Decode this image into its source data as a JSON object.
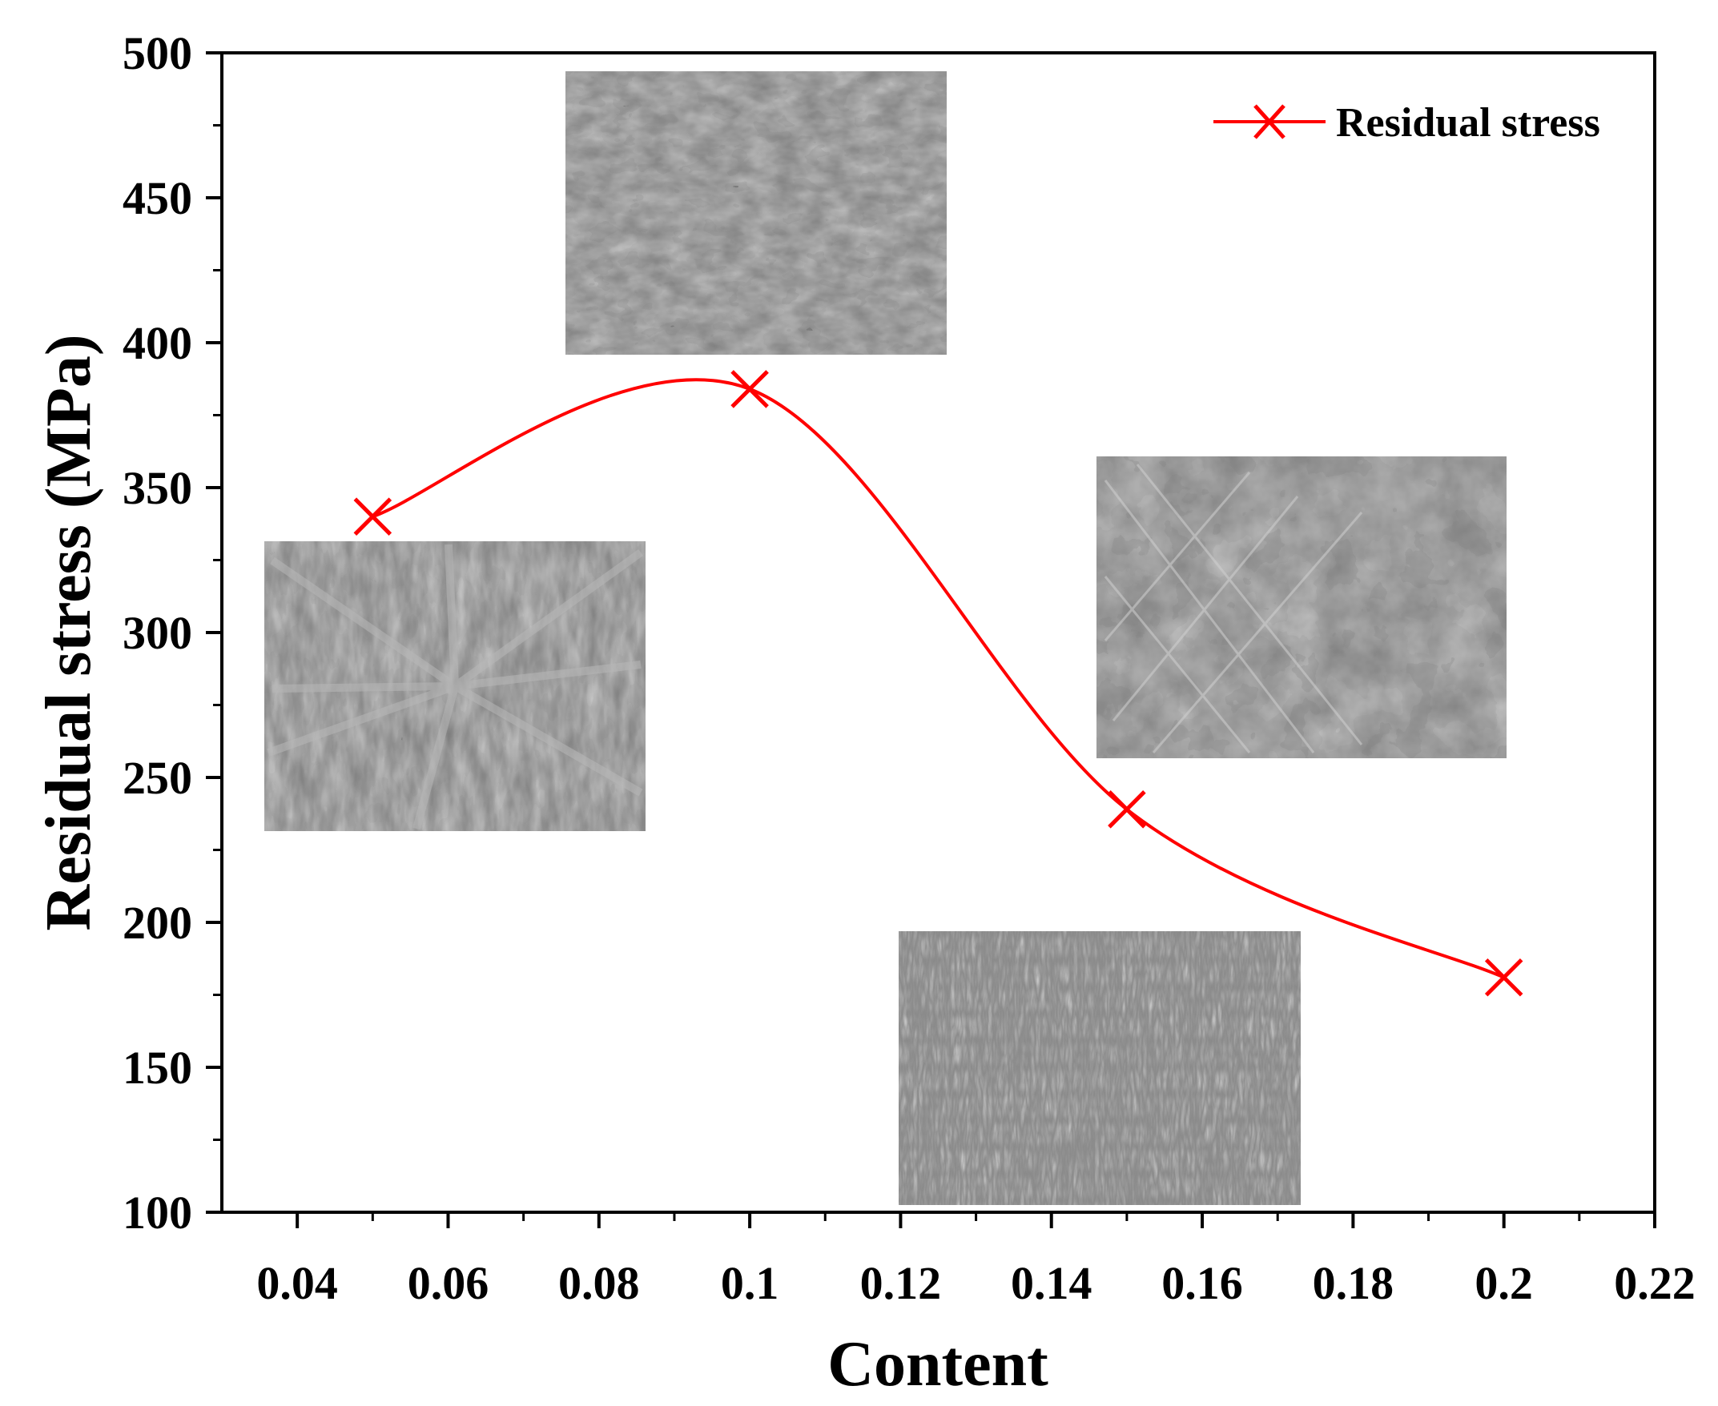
{
  "chart_data": {
    "type": "line",
    "title": "",
    "xlabel": "Content",
    "ylabel": "Residual stress (MPa)",
    "xlim": [
      0.03,
      0.22
    ],
    "ylim": [
      100,
      500
    ],
    "xticks": [
      0.04,
      0.06,
      0.08,
      0.1,
      0.12,
      0.14,
      0.16,
      0.18,
      0.2,
      0.22
    ],
    "xtick_labels": [
      "0.04",
      "0.06",
      "0.08",
      "0.1",
      "0.12",
      "0.14",
      "0.16",
      "0.18",
      "0.2",
      "0.22"
    ],
    "yticks": [
      100,
      150,
      200,
      250,
      300,
      350,
      400,
      450,
      500
    ],
    "ytick_labels": [
      "100",
      "150",
      "200",
      "250",
      "300",
      "350",
      "400",
      "450",
      "500"
    ],
    "legend_position": "top-right",
    "grid": false,
    "series": [
      {
        "name": "Residual stress",
        "color": "#ff0000",
        "marker": "x",
        "smooth": true,
        "x": [
          0.05,
          0.1,
          0.15,
          0.2
        ],
        "y": [
          340,
          384,
          239,
          181
        ]
      }
    ],
    "insets": [
      {
        "name": "microstructure-inset-0.05",
        "description": "SEM micrograph"
      },
      {
        "name": "microstructure-inset-0.1",
        "description": "SEM micrograph"
      },
      {
        "name": "microstructure-inset-0.15",
        "description": "SEM micrograph"
      },
      {
        "name": "microstructure-inset-0.2",
        "description": "SEM micrograph"
      }
    ]
  }
}
